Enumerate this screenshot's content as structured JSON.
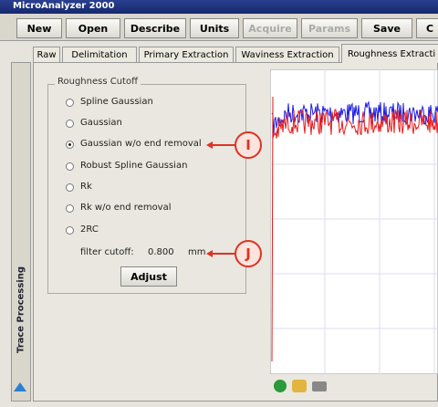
{
  "window": {
    "title": "MicroAnalyzer 2000"
  },
  "toolbar": [
    {
      "label": "New",
      "enabled": true
    },
    {
      "label": "Open",
      "enabled": true
    },
    {
      "label": "Describe",
      "enabled": true
    },
    {
      "label": "Units",
      "enabled": true
    },
    {
      "label": "Acquire",
      "enabled": false
    },
    {
      "label": "Params",
      "enabled": false
    },
    {
      "label": "Save",
      "enabled": true
    },
    {
      "label": "C",
      "enabled": true
    }
  ],
  "tabs": {
    "items": [
      "Raw",
      "Delimitation",
      "Primary Extraction",
      "Waviness Extraction",
      "Roughness Extracti"
    ],
    "selected": 4
  },
  "side_panel": {
    "label": "Trace Processing"
  },
  "group": {
    "title": "Roughness Cutoff",
    "options": [
      "Spline Gaussian",
      "Gaussian",
      "Gaussian w/o end removal",
      "Robust Spline Gaussian",
      "Rk",
      "Rk w/o end removal",
      "2RC"
    ],
    "selected": 2,
    "filter_label": "filter cutoff:",
    "filter_value": "0.800",
    "filter_unit": "mm",
    "button": "Adjust"
  },
  "callouts": [
    "I",
    "J"
  ]
}
